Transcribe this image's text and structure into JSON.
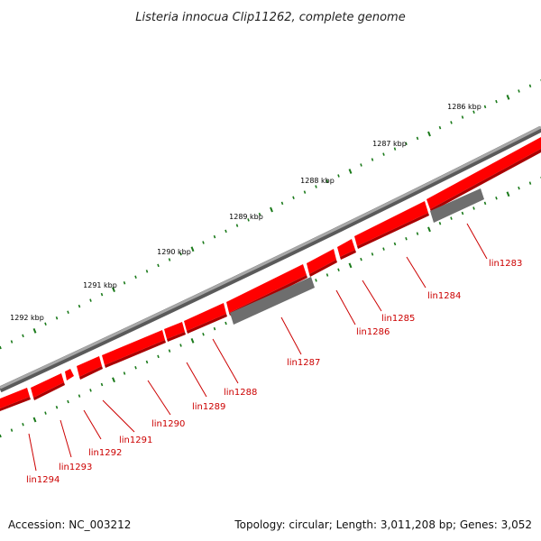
{
  "title": "Listeria innocua Clip11262, complete genome",
  "footer": {
    "accession": "Accession: NC_003212",
    "summary": "Topology: circular; Length: 3,011,208 bp; Genes: 3,052"
  },
  "colors": {
    "gene_red": "#ff0000",
    "gene_red_dark": "#b30000",
    "gene_gray": "#6e6e6e",
    "backbone": "#8c8c8c",
    "tick_green": "#1a7a1a",
    "label_red": "#cc0000"
  },
  "kbp_ticks": [
    {
      "label": "1286 kbp"
    },
    {
      "label": "1287 kbp"
    },
    {
      "label": "1288 kbp"
    },
    {
      "label": "1289 kbp"
    },
    {
      "label": "1290 kbp"
    },
    {
      "label": "1291 kbp"
    },
    {
      "label": "1292 kbp"
    }
  ],
  "genes": [
    {
      "label": "lin1283"
    },
    {
      "label": "lin1284"
    },
    {
      "label": "lin1285"
    },
    {
      "label": "lin1286"
    },
    {
      "label": "lin1287"
    },
    {
      "label": "lin1288"
    },
    {
      "label": "lin1289"
    },
    {
      "label": "lin1290"
    },
    {
      "label": "lin1291"
    },
    {
      "label": "lin1292"
    },
    {
      "label": "lin1293"
    },
    {
      "label": "lin1294"
    }
  ]
}
